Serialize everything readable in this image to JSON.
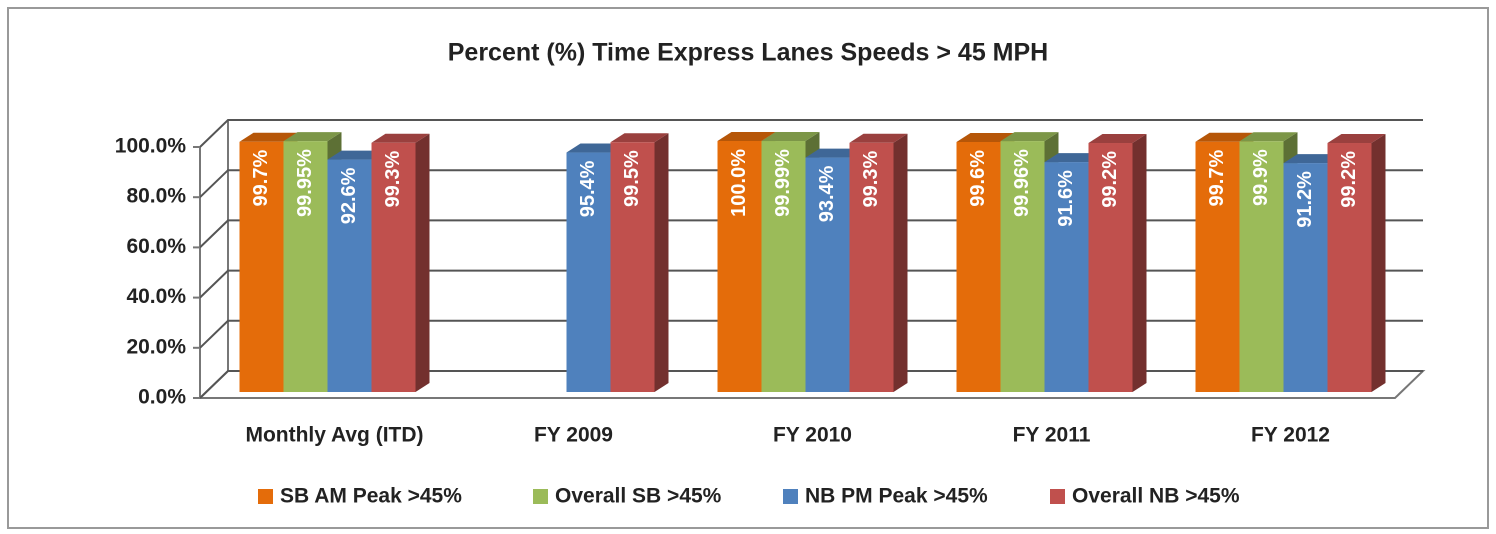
{
  "chart_data": {
    "type": "bar3d",
    "title": "Percent (%) Time Express Lanes Speeds > 45 MPH",
    "categories": [
      "Monthly Avg (ITD)",
      "FY 2009",
      "FY 2010",
      "FY 2011",
      "FY 2012"
    ],
    "series": [
      {
        "name": "SB AM Peak >45%",
        "color": "#e46c0a",
        "values": [
          99.7,
          null,
          100.0,
          99.6,
          99.7
        ],
        "value_labels": [
          "99.7%",
          null,
          "100.0%",
          "99.6%",
          "99.7%"
        ]
      },
      {
        "name": "Overall SB >45%",
        "color": "#9bbb59",
        "values": [
          99.95,
          null,
          99.99,
          99.96,
          99.9
        ],
        "value_labels": [
          "99.95%",
          null,
          "99.99%",
          "99.96%",
          "99.9%"
        ]
      },
      {
        "name": "NB PM Peak >45%",
        "color": "#4f81bd",
        "values": [
          92.6,
          95.4,
          93.4,
          91.6,
          91.2
        ],
        "value_labels": [
          "92.6%",
          "95.4%",
          "93.4%",
          "91.6%",
          "91.2%"
        ]
      },
      {
        "name": "Overall NB >45%",
        "color": "#c0504d",
        "values": [
          99.3,
          99.5,
          99.3,
          99.2,
          99.2
        ],
        "value_labels": [
          "99.3%",
          "99.5%",
          "99.3%",
          "99.2%",
          "99.2%"
        ]
      }
    ],
    "ylim": [
      0,
      100
    ],
    "yticks": [
      {
        "value": 0,
        "label": "0.0%"
      },
      {
        "value": 20,
        "label": "20.0%"
      },
      {
        "value": 40,
        "label": "40.0%"
      },
      {
        "value": 60,
        "label": "60.0%"
      },
      {
        "value": 80,
        "label": "80.0%"
      },
      {
        "value": 100,
        "label": "100.0%"
      }
    ],
    "grid": true,
    "legend": "bottom"
  }
}
